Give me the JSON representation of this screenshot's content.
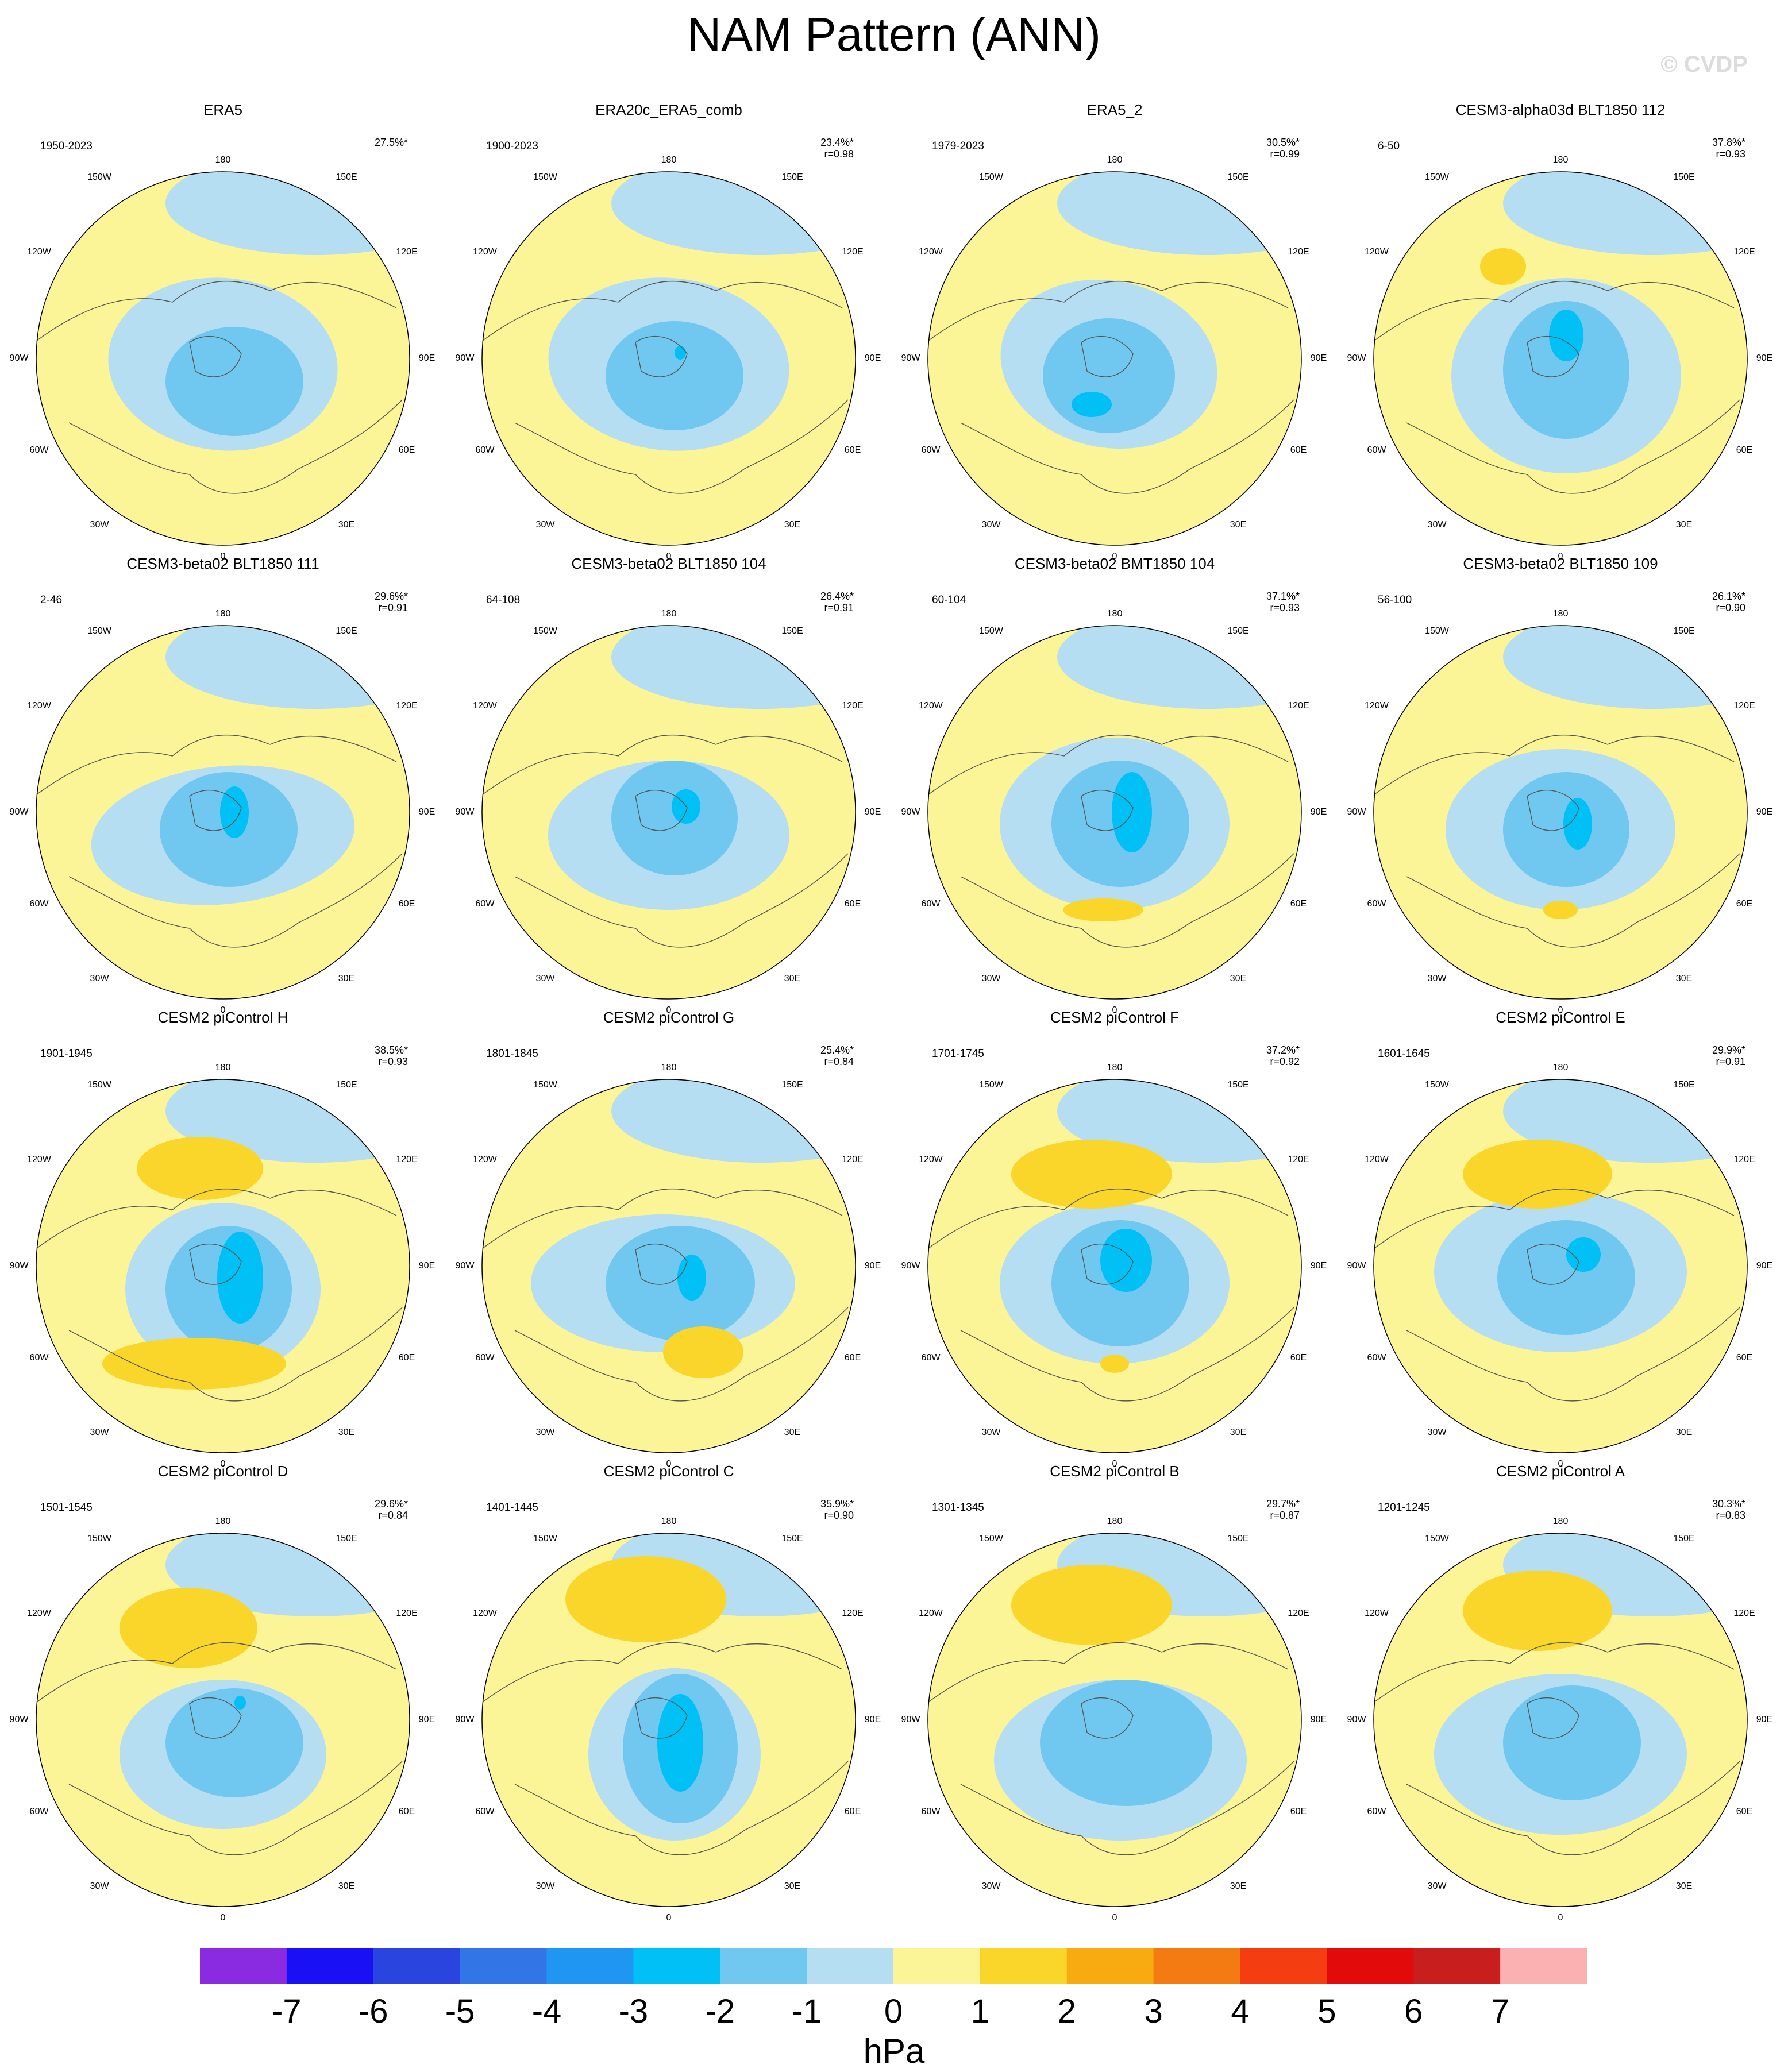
{
  "title": "NAM Pattern (ANN)",
  "watermark": "© CVDP",
  "lon_labels": [
    "180",
    "150E",
    "120E",
    "90E",
    "60E",
    "30E",
    "0",
    "30W",
    "60W",
    "90W",
    "120W",
    "150W"
  ],
  "panels": [
    {
      "name": "ERA5",
      "period": "1950-2023",
      "pct": "27.5%*",
      "r": ""
    },
    {
      "name": "ERA20c_ERA5_comb",
      "period": "1900-2023",
      "pct": "23.4%*",
      "r": "r=0.98"
    },
    {
      "name": "ERA5_2",
      "period": "1979-2023",
      "pct": "30.5%*",
      "r": "r=0.99"
    },
    {
      "name": "CESM3-alpha03d BLT1850 112",
      "period": "6-50",
      "pct": "37.8%*",
      "r": "r=0.93"
    },
    {
      "name": "CESM3-beta02 BLT1850 111",
      "period": "2-46",
      "pct": "29.6%*",
      "r": "r=0.91"
    },
    {
      "name": "CESM3-beta02 BLT1850 104",
      "period": "64-108",
      "pct": "26.4%*",
      "r": "r=0.91"
    },
    {
      "name": "CESM3-beta02 BMT1850 104",
      "period": "60-104",
      "pct": "37.1%*",
      "r": "r=0.93"
    },
    {
      "name": "CESM3-beta02 BLT1850 109",
      "period": "56-100",
      "pct": "26.1%*",
      "r": "r=0.90"
    },
    {
      "name": "CESM2 piControl H",
      "period": "1901-1945",
      "pct": "38.5%*",
      "r": "r=0.93"
    },
    {
      "name": "CESM2 piControl G",
      "period": "1801-1845",
      "pct": "25.4%*",
      "r": "r=0.84"
    },
    {
      "name": "CESM2 piControl F",
      "period": "1701-1745",
      "pct": "37.2%*",
      "r": "r=0.92"
    },
    {
      "name": "CESM2 piControl E",
      "period": "1601-1645",
      "pct": "29.9%*",
      "r": "r=0.91"
    },
    {
      "name": "CESM2 piControl D",
      "period": "1501-1545",
      "pct": "29.6%*",
      "r": "r=0.84"
    },
    {
      "name": "CESM2 piControl C",
      "period": "1401-1445",
      "pct": "35.9%*",
      "r": "r=0.90"
    },
    {
      "name": "CESM2 piControl B",
      "period": "1301-1345",
      "pct": "29.7%*",
      "r": "r=0.87"
    },
    {
      "name": "CESM2 piControl A",
      "period": "1201-1245",
      "pct": "30.3%*",
      "r": "r=0.83"
    }
  ],
  "colorbar": {
    "units": "hPa",
    "tick_labels": [
      "-7",
      "-6",
      "-5",
      "-4",
      "-3",
      "-2",
      "-1",
      "0",
      "1",
      "2",
      "3",
      "4",
      "5",
      "6",
      "7"
    ],
    "colors": [
      "#8a2be2",
      "#1a10f5",
      "#2a44e0",
      "#3275e6",
      "#1e96f2",
      "#00c0f5",
      "#70c8f0",
      "#b6def2",
      "#fbf597",
      "#fad62a",
      "#f7ab10",
      "#f47a12",
      "#f53d12",
      "#e20a0a",
      "#c81e1e",
      "#fbb1b1"
    ]
  },
  "colors": {
    "positive_fill": "#fbf597",
    "negative_fill": "#b6def2",
    "neg_strong": "#70c8f0",
    "neg_core": "#00c0f5",
    "pos_strong": "#fad62a",
    "pos_core": "#f7ab10"
  }
}
